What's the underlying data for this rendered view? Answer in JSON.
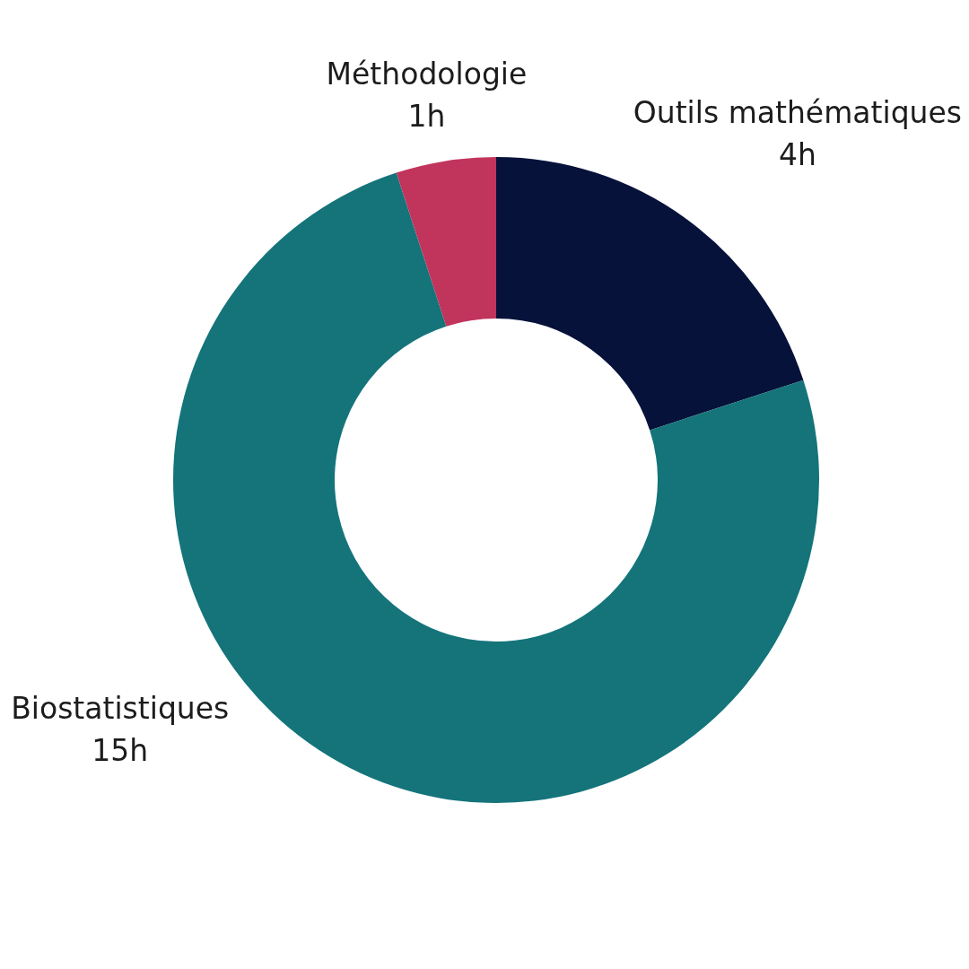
{
  "chart_data": {
    "type": "donut",
    "categories": [
      "Outils mathématiques",
      "Biostatistiques",
      "Méthodologie"
    ],
    "values": [
      4,
      15,
      1
    ],
    "colors": [
      "#06123a",
      "#14747a",
      "#c1345c"
    ],
    "value_labels": [
      "4h",
      "15h",
      "1h"
    ]
  }
}
